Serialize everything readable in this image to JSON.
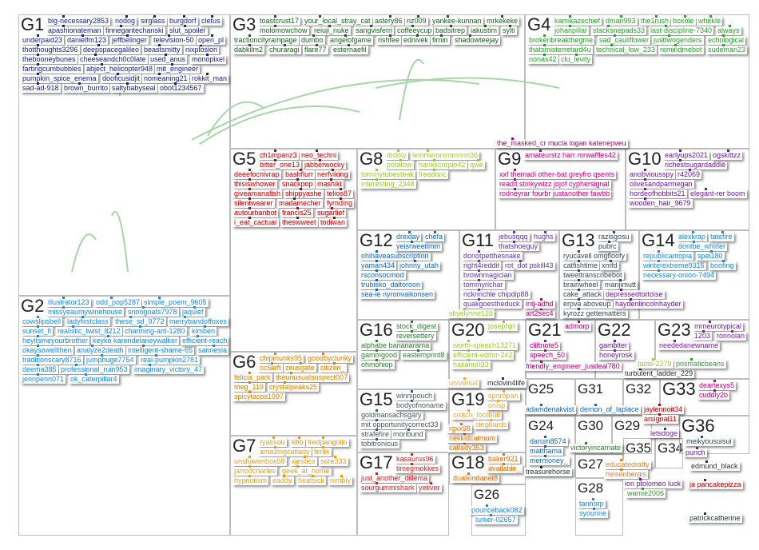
{
  "groups": [
    {
      "id": "G1",
      "color": "#1a237e",
      "labels": [
        "big-necessary2853",
        "nodog",
        "sirglass",
        "burgdorf",
        "apashionateman",
        "finnegantechanski",
        "slut_spoiler",
        "underpaid23",
        "danielfm123",
        "jeffbelinger",
        "television-50",
        "thotthoughts3296",
        "deepspacegalileo",
        "beastsmitty",
        "thebooneybunes",
        "cheeseandch0c0late",
        "nixplosion",
        "cletus",
        "used_anus",
        "fartingcumbubbles",
        "abject_helicopter948",
        "pumpkin_spice_enema",
        "mit_engineer",
        "monopixel",
        "dooficusidjit",
        "open_pl",
        "nomeaning21",
        "rokkit_man",
        "sad-ad-918",
        "brown_burrito",
        "saltybabyseal",
        "obot1234567"
      ]
    },
    {
      "id": "G2",
      "color": "#1e88e5",
      "labels": [
        "illustrator123",
        "odd_pop5287",
        "simple_poem_9605",
        "missyeaumywinehouse",
        "snoogoats7978",
        "jaquief",
        "cowslipsbell",
        "ladyfirstclass",
        "these_sd_9772",
        "merrybandoffoxes",
        "sunset_fi",
        "realistic_twist_8212",
        "charming-ant-1280",
        "heyitsmeyourbrother",
        "kimben",
        "keyke karendelaneywalker",
        "okaysowellthen",
        "analyze2death",
        "intelligent-shame-65",
        "traditionscary8716",
        "jumphuge7754",
        "efficient-reach",
        "real-pumpkin2781",
        "deema385",
        "professional_ruin953",
        "imaginary_victory_47",
        "jennpenn071",
        "ok_caterpillar4",
        "sannesia"
      ]
    },
    {
      "id": "G3",
      "color": "#1b5e20",
      "labels": [
        "toastcrust17",
        "your_local_stray_cat",
        "astery86",
        "riz009",
        "yankee-kunnan",
        "molomowchow",
        "mrkekeke",
        "reiuji_nuke",
        "sangvisferri",
        "coffeeycup",
        "badsitrep",
        "tractioncityrampage",
        "iakustim",
        "dumbo",
        "angelofgame",
        "rishfee",
        "sylti",
        "ednivek",
        "firnin",
        "shadowteejay",
        "dabkilm2",
        "churaragi",
        "flare77",
        "esternaefil"
      ]
    },
    {
      "id": "G4",
      "color": "#2e9e2e",
      "labels": [
        "kamikazechief",
        "dman993",
        "the1rush",
        "boxole",
        "whirkle",
        "johanpillar",
        "stacksnepads33",
        "last-discipline-7340",
        "brokenbreakthegme",
        "sad_cauliflower",
        "justtwogenders",
        "thatsmisterretard4u",
        "technical_low_233",
        "remindmebot",
        "always",
        "echological",
        "sudeman23",
        "nonas42",
        "clu_levity"
      ]
    },
    {
      "id": "G5",
      "color": "#c00000",
      "labels": [
        "ch1mpanz3",
        "neo_techni",
        "bitter_one13",
        "jabberwocky",
        "deeefocnivrap",
        "bashflurr",
        "nerfviking",
        "thisiswhower",
        "snackpop",
        "giveamanafish",
        "mashiki",
        "shippyashe",
        "silentwearer",
        "madamecher",
        "autourbanbot",
        "telios87",
        "francis25",
        "fyrnding",
        "i_eat_cactuar",
        "sugarlief",
        "theswweet",
        "todiwan"
      ]
    },
    {
      "id": "G6",
      "color": "#e08000",
      "labels": [
        "chipmunks95",
        "goodbyclunky",
        "oc6left",
        "zeusgate",
        "felicia_park",
        "citizen_",
        "theunusualsuspect007",
        "meg_119",
        "crystalpeaks25",
        "spicytacos1997"
      ]
    },
    {
      "id": "G7",
      "color": "#f0a000",
      "labels": [
        "ryassou",
        "kbb",
        "fredpangolin",
        "amazingcatlady",
        "feritk",
        "unshavenbox59",
        "xjestics",
        "jarrodcharles",
        "geek_at_home",
        "sore333",
        "hypnotism",
        "eaddy",
        "heatsick",
        "nimbly"
      ]
    },
    {
      "id": "G8",
      "color": "#9acd32",
      "labels": [
        "drdoiy",
        "lemmemmmmnnn36",
        "potatow",
        "hankscorpio42",
        "tommytubesteak",
        "freedonc",
        "qwe",
        "interesting_2348"
      ]
    },
    {
      "id": "G9",
      "color": "#c0007a",
      "labels": [
        "xxf themadi other-bat greyfro qsents",
        "the_masked_cr mucla logan katenepveu",
        "readit stinkywizz jojof cyphersignal",
        "amateurstz harr mrwaffles42",
        "rodneyrar fourbr justanother fawbb"
      ]
    },
    {
      "id": "G10",
      "color": "#6a1b9a",
      "labels": [
        "earlyups2021",
        "richestsugardaddie",
        "ogskittzz",
        "anobviousspy",
        "r42069",
        "olivesandparmegan",
        "hordeofhobbits21",
        "elegant-rer boom",
        "wooden_hair_9679"
      ]
    },
    {
      "id": "G11",
      "color": "#5e35b1",
      "labels": [
        "jebusqqq",
        "thatshoeguy",
        "donotpetthesnake",
        "right4reddit",
        "rot_dot pskill43",
        "brownmagician",
        "hughs",
        "tommyrichar",
        "ricknrichle chipdip88",
        "quakgoestheduck"
      ]
    },
    {
      "id": "G12",
      "color": "#1565c0",
      "labels": [
        "drexlay",
        "ohihaveasubscription",
        "yeisrweetimm",
        "yaman434",
        "johnny_utah",
        "rsconsocmod",
        "chefa",
        "trubisko_daltoroon",
        "sea-ie nyronvaikonsen"
      ]
    },
    {
      "id": "G13",
      "color": "#37474f",
      "labels": [
        "razisgosu",
        "ryucavell omgfloofy",
        "pubrc",
        "catfishtime",
        "tweettranscribebot",
        "brainwheel",
        "cake_attack",
        "erpva aboveup",
        "xmfd",
        "kyrozz gettematters",
        "manjimutt"
      ]
    },
    {
      "id": "G14",
      "color": "#1e88e5",
      "labels": [
        "alexkrap",
        "dontbe_whirler",
        "republicantopia",
        "winterextreme9316",
        "tatefire",
        "necessary-onion-7494",
        "spei180",
        "boofing"
      ]
    },
    {
      "id": "G15",
      "color": "#455a64",
      "labels": [
        "goldmansachsgary",
        "winnipouch",
        "mit opportunitycorrect33",
        "bodyofnoname",
        "strafefire",
        "moribund",
        "tobitronicus"
      ]
    },
    {
      "id": "G16",
      "color": "#2e7d32",
      "labels": [
        "stock_digest",
        "alphabe bananarama",
        "reversettery",
        "gammgood",
        "easternprint8",
        "ohmohiop"
      ]
    },
    {
      "id": "G17",
      "color": "#c62828",
      "labels": [
        "kasaurus96",
        "just_another_dillema",
        "timegmokkes",
        "sourgummishark",
        "yetiver"
      ]
    },
    {
      "id": "G18",
      "color": "#ef6c00",
      "labels": [
        "dualkindanet8",
        "catlady353",
        "baker921",
        "available_",
        "nekkidcatmum",
        "rgxx98"
      ]
    },
    {
      "id": "G19",
      "color": "#f9a825",
      "labels": [
        "crotch_football",
        "sporopan",
        "onisp",
        "sleghards",
        "universal"
      ]
    },
    {
      "id": "G20",
      "color": "#9acd32",
      "labels": [
        "worth-speech13271",
        "efficient-editor-242",
        "josephjrr",
        "hakann033",
        "skyelynne128"
      ]
    },
    {
      "id": "G21",
      "color": "#c0007a",
      "labels": [
        "cliftnote5",
        "speech_50",
        "friendly_engineer_jusdeal780",
        "art2sec4",
        "intj-adhd",
        "admorp"
      ]
    },
    {
      "id": "G22",
      "color": "#6a1b9a",
      "labels": [
        "gambiter",
        "honeyrosk",
        "depressedtortoise",
        "haydenlincolnhayder"
      ]
    },
    {
      "id": "G23",
      "color": "#7b1fa2",
      "labels": [
        "mrneurotypical",
        "1203",
        "neededanewname",
        "ronnolan"
      ]
    },
    {
      "id": "G24",
      "color": "#1565c0",
      "labels": [
        "darum8574",
        "matthama",
        "adamdenakvist",
        "demon_of_laplace",
        "mermoney_"
      ]
    },
    {
      "id": "G25",
      "color": "#263238",
      "labels": [
        "mclovin4life",
        "turbulent_ladder_229",
        "treasurehorse"
      ]
    },
    {
      "id": "G26",
      "color": "#1e88e5",
      "labels": [
        "pounceback082",
        "lurker-02657"
      ]
    },
    {
      "id": "G27",
      "color": "#2e7d32",
      "labels": [
        "victoryincarnate"
      ]
    },
    {
      "id": "G28",
      "color": "#1e88e5",
      "labels": [
        "tannorp",
        "syourine"
      ]
    },
    {
      "id": "G29",
      "color": "#c00000",
      "labels": [
        "jaylennoit34",
        "arsignal11"
      ]
    },
    {
      "id": "G30",
      "color": "#f57f17",
      "labels": [
        "educatedratty",
        "heisenbergis"
      ]
    },
    {
      "id": "G31",
      "color": "#9acd32",
      "labels": [
        "taste-2279"
      ]
    },
    {
      "id": "G32",
      "color": "#2e9e2e",
      "labels": [
        "prismaticbeans"
      ]
    },
    {
      "id": "G33",
      "color": "#c0007a",
      "labels": [
        "deartexys5",
        "cuddly2b"
      ]
    },
    {
      "id": "G34",
      "color": "#6a1b9a",
      "labels": [
        "letsdoge"
      ]
    },
    {
      "id": "G35",
      "color": "#6a1b9a",
      "labels": [
        "ion ptolomeo luck"
      ]
    },
    {
      "id": "G36",
      "color": "#37474f",
      "labels": [
        "meikyousuisui"
      ]
    },
    {
      "id": "G37",
      "color": "#333333",
      "labels": [
        "edmund_black"
      ]
    },
    {
      "id": "G38",
      "color": "#6a1b9a",
      "labels": [
        "punch"
      ]
    },
    {
      "id": "G39",
      "color": "#c00000",
      "labels": [
        "ja pancakepizza"
      ]
    },
    {
      "id": "G40",
      "color": "#263238",
      "labels": [
        "patrickcatherine"
      ]
    },
    {
      "id": "G41",
      "color": "#2e9e2e",
      "labels": [
        "wamie2006"
      ]
    }
  ]
}
